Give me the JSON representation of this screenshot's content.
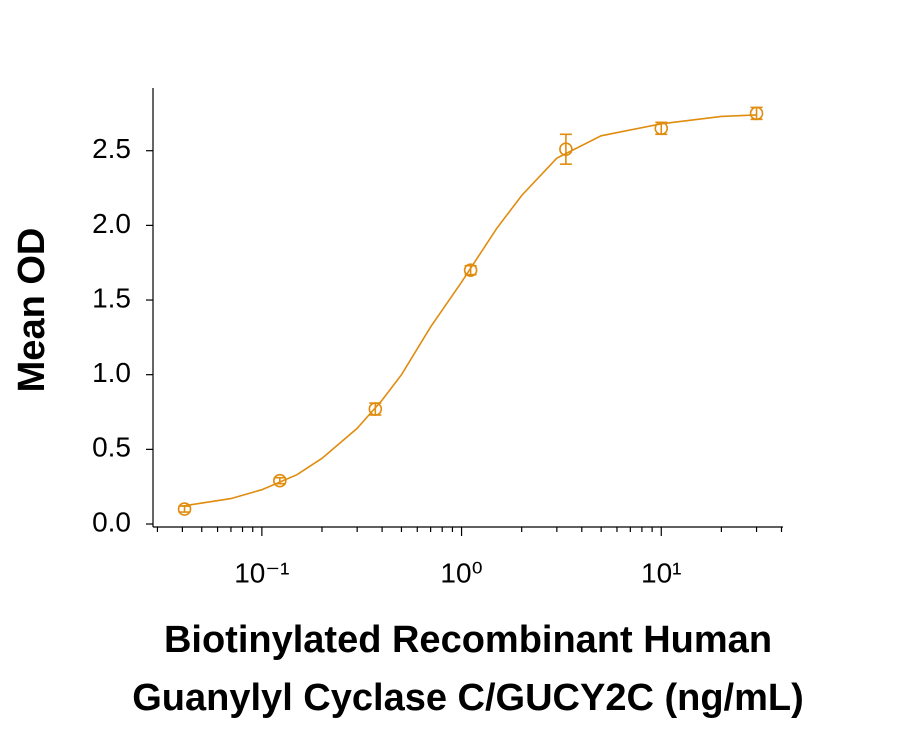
{
  "chart_data": {
    "type": "scatter",
    "ylabel": "Mean OD",
    "xlabel": [
      "Biotinylated Recombinant Human",
      "Guanylyl Cyclase C/GUCY2C (ng/mL)"
    ],
    "log_x": true,
    "color": "#e08c0e",
    "x": [
      0.041,
      0.123,
      0.37,
      1.11,
      3.33,
      10,
      30
    ],
    "values": [
      0.1,
      0.29,
      0.77,
      1.7,
      2.51,
      2.65,
      2.75
    ],
    "errors": [
      0.02,
      0.02,
      0.04,
      0.03,
      0.1,
      0.04,
      0.04
    ],
    "fit": {
      "x": [
        0.04,
        0.07,
        0.1,
        0.15,
        0.2,
        0.3,
        0.4,
        0.5,
        0.7,
        1,
        1.5,
        2,
        3,
        5,
        10,
        20,
        30
      ],
      "values": [
        0.12,
        0.17,
        0.23,
        0.33,
        0.44,
        0.64,
        0.83,
        1.0,
        1.32,
        1.62,
        1.98,
        2.2,
        2.45,
        2.6,
        2.68,
        2.73,
        2.74
      ]
    },
    "xlim": [
      0.0285,
      40.7
    ],
    "ylim": [
      -0.02,
      2.92
    ],
    "xticks": [
      {
        "value": 0.1,
        "label": "10⁻¹"
      },
      {
        "value": 1,
        "label": "10⁰"
      },
      {
        "value": 10,
        "label": "10¹"
      }
    ],
    "xminorticks": [
      0.03,
      0.04,
      0.05,
      0.06,
      0.07,
      0.08,
      0.09,
      0.2,
      0.3,
      0.4,
      0.5,
      0.6,
      0.7,
      0.8,
      0.9,
      2,
      3,
      4,
      5,
      6,
      7,
      8,
      9,
      20,
      30,
      40
    ],
    "yticks": [
      {
        "value": 0,
        "label": "0.0"
      },
      0.5,
      {
        "value": 1,
        "label": "1.0"
      },
      1.5,
      {
        "value": 2,
        "label": "2.0"
      },
      2.5
    ]
  }
}
